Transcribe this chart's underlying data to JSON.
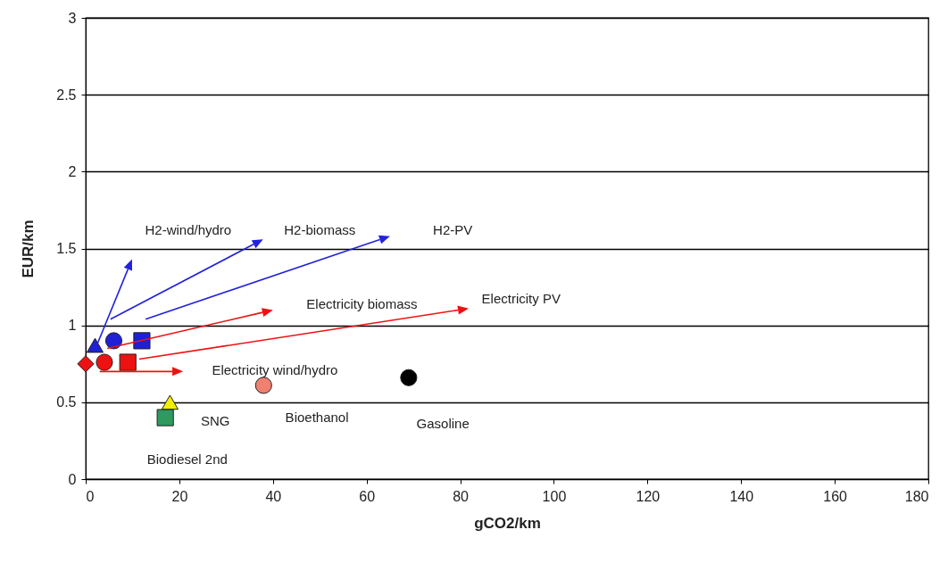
{
  "chart_data": {
    "type": "scatter",
    "xlabel": "gCO2/km",
    "ylabel": "EUR/km",
    "xlim": [
      0,
      180
    ],
    "xticks": [
      0,
      20,
      40,
      60,
      80,
      100,
      120,
      140,
      160,
      180
    ],
    "ylim": [
      0,
      3
    ],
    "yticks": [
      0,
      0.5,
      1,
      1.5,
      2,
      2.5,
      3
    ],
    "grid": "y",
    "series": [
      {
        "color": "#1f1fd6",
        "marker": "triangle",
        "x": [
          2
        ],
        "values": [
          0.87
        ]
      },
      {
        "color": "#1f1fd6",
        "marker": "circle",
        "x": [
          6
        ],
        "values": [
          0.9
        ]
      },
      {
        "color": "#1f1fd6",
        "marker": "square",
        "x": [
          12
        ],
        "values": [
          0.9
        ]
      },
      {
        "color": "#ee1111",
        "marker": "diamond",
        "x": [
          0
        ],
        "values": [
          0.75
        ]
      },
      {
        "color": "#ee1111",
        "marker": "circle",
        "x": [
          4
        ],
        "values": [
          0.76
        ]
      },
      {
        "color": "#ee1111",
        "marker": "square",
        "x": [
          9
        ],
        "values": [
          0.76
        ]
      },
      {
        "color": "#2e9a5e",
        "marker": "square",
        "x": [
          17
        ],
        "values": [
          0.4
        ]
      },
      {
        "color": "#f0f000",
        "marker": "triangle",
        "x": [
          18
        ],
        "values": [
          0.5
        ]
      },
      {
        "color": "#f08070",
        "marker": "circle",
        "x": [
          38
        ],
        "values": [
          0.61
        ]
      },
      {
        "color": "#000000",
        "marker": "circle",
        "x": [
          69
        ],
        "values": [
          0.66
        ]
      }
    ],
    "annotations": [
      "H2-wind/hydro",
      "H2-biomass",
      "H2-PV",
      "Electricity biomass",
      "Electricity PV",
      "Electricity wind/hydro",
      "SNG",
      "Bioethanol",
      "Gasoline",
      "Biodiesel 2nd"
    ]
  }
}
